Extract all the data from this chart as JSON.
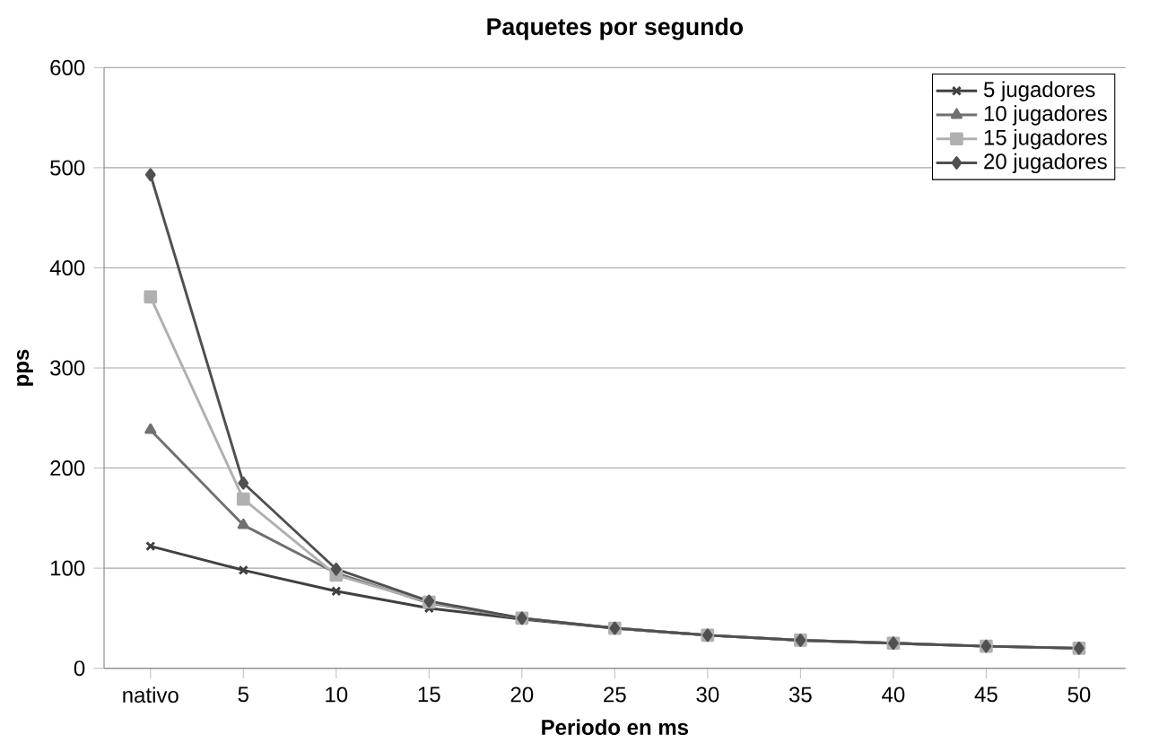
{
  "chart_data": {
    "type": "line",
    "title": "Paquetes por segundo",
    "xlabel": "Periodo en ms",
    "ylabel": "pps",
    "categories": [
      "nativo",
      "5",
      "10",
      "15",
      "20",
      "25",
      "30",
      "35",
      "40",
      "45",
      "50"
    ],
    "ylim": [
      0,
      600
    ],
    "yticks": [
      0,
      100,
      200,
      300,
      400,
      500,
      600
    ],
    "grid": "y",
    "legend": "top right",
    "series": [
      {
        "name": "5 jugadores",
        "color": "#404040",
        "marker": "cross",
        "values": [
          122,
          98,
          77,
          60,
          49,
          40,
          33,
          28,
          25,
          22,
          20
        ]
      },
      {
        "name": "10 jugadores",
        "color": "#707070",
        "marker": "triangle",
        "values": [
          238,
          143,
          95,
          65,
          50,
          40,
          33,
          28,
          25,
          22,
          20
        ]
      },
      {
        "name": "15 jugadores",
        "color": "#b0b0b0",
        "marker": "square",
        "values": [
          371,
          169,
          93,
          66,
          50,
          40,
          33,
          28,
          25,
          22,
          20
        ]
      },
      {
        "name": "20 jugadores",
        "color": "#505050",
        "marker": "diamond",
        "values": [
          493,
          185,
          99,
          67,
          50,
          40,
          33,
          28,
          25,
          22,
          20
        ]
      }
    ]
  }
}
